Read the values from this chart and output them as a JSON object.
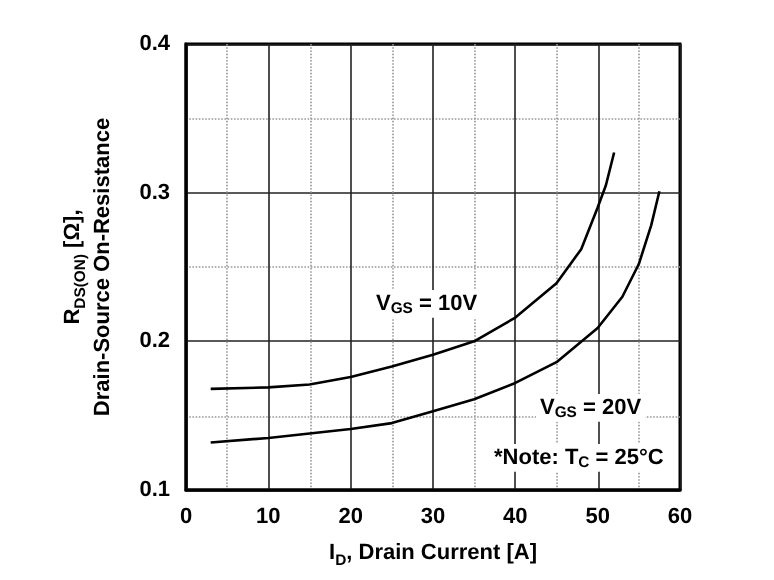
{
  "chart_data": {
    "type": "line",
    "xlabel": "I$_{D}$, Drain Current [A]",
    "ylabel": "R$_{DS(ON)}$ [Ω],\nDrain-Source On-Resistance",
    "xlim": [
      0,
      60
    ],
    "xticks": [
      0,
      10,
      20,
      30,
      40,
      50,
      60
    ],
    "ylim": [
      0.1,
      0.4
    ],
    "yticks": [
      0.1,
      0.2,
      0.3,
      0.4
    ],
    "grid": true,
    "marker": "none",
    "line_style": "solid",
    "series": [
      {
        "color": "#000000",
        "x": [
          3,
          10,
          15,
          20,
          25,
          30,
          35,
          40,
          45,
          48,
          50,
          51,
          52
        ],
        "values": [
          0.168,
          0.169,
          0.171,
          0.176,
          0.183,
          0.191,
          0.2,
          0.216,
          0.239,
          0.262,
          0.29,
          0.305,
          0.327
        ]
      },
      {
        "color": "#000000",
        "x": [
          3,
          10,
          15,
          20,
          25,
          30,
          35,
          40,
          45,
          50,
          53,
          55,
          56.5,
          57.5
        ],
        "values": [
          0.132,
          0.135,
          0.138,
          0.141,
          0.145,
          0.153,
          0.161,
          0.172,
          0.186,
          0.209,
          0.23,
          0.252,
          0.278,
          0.301
        ]
      }
    ],
    "annotations": [
      "V$_{GS}$ = 10V",
      "V$_{GS}$ = 20V",
      "*Note: T$_{C}$ = 25°C"
    ]
  }
}
